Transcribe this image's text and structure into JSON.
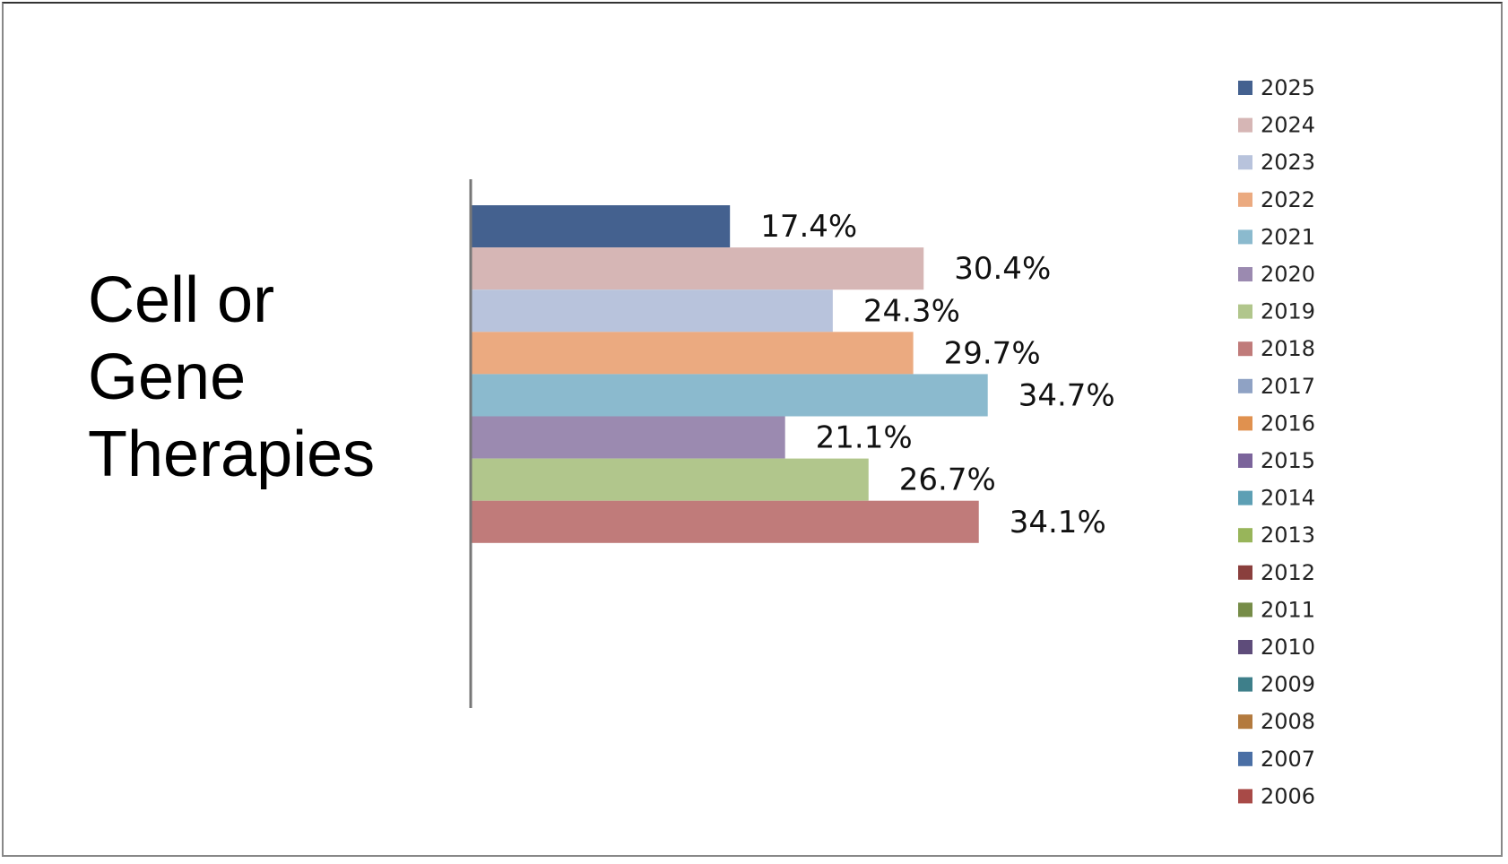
{
  "chart_data": {
    "type": "bar",
    "orientation": "horizontal",
    "title": "Cell or Gene Therapies",
    "categories": [
      null
    ],
    "xlim": [
      0,
      50
    ],
    "series": [
      {
        "name": "2025",
        "color": "#44618f",
        "values": [
          17.4
        ],
        "value_labels": [
          "17.4%"
        ]
      },
      {
        "name": "2024",
        "color": "#d6b6b5",
        "values": [
          30.4
        ],
        "value_labels": [
          "30.4%"
        ]
      },
      {
        "name": "2023",
        "color": "#b8c3dc",
        "values": [
          24.3
        ],
        "value_labels": [
          "24.3%"
        ]
      },
      {
        "name": "2022",
        "color": "#ebaa80",
        "values": [
          29.7
        ],
        "value_labels": [
          "29.7%"
        ]
      },
      {
        "name": "2021",
        "color": "#8bbace",
        "values": [
          34.7
        ],
        "value_labels": [
          "34.7%"
        ]
      },
      {
        "name": "2020",
        "color": "#9b8ab0",
        "values": [
          21.1
        ],
        "value_labels": [
          "21.1%"
        ]
      },
      {
        "name": "2019",
        "color": "#b1c68c",
        "values": [
          26.7
        ],
        "value_labels": [
          "26.7%"
        ]
      },
      {
        "name": "2018",
        "color": "#c07b7a",
        "values": [
          34.1
        ],
        "value_labels": [
          "34.1%"
        ]
      },
      {
        "name": "2017",
        "color": "#8fa2c4",
        "values": [
          null
        ]
      },
      {
        "name": "2016",
        "color": "#e0914f",
        "values": [
          null
        ]
      },
      {
        "name": "2015",
        "color": "#7b649b",
        "values": [
          null
        ]
      },
      {
        "name": "2014",
        "color": "#5d9fb4",
        "values": [
          null
        ]
      },
      {
        "name": "2013",
        "color": "#98b55a",
        "values": [
          null
        ]
      },
      {
        "name": "2012",
        "color": "#8a3f3d",
        "values": [
          null
        ]
      },
      {
        "name": "2011",
        "color": "#768c48",
        "values": [
          null
        ]
      },
      {
        "name": "2010",
        "color": "#5e4c7a",
        "values": [
          null
        ]
      },
      {
        "name": "2009",
        "color": "#3e7f8a",
        "values": [
          null
        ]
      },
      {
        "name": "2008",
        "color": "#b37a3e",
        "values": [
          null
        ]
      },
      {
        "name": "2007",
        "color": "#4a6fa5",
        "values": [
          null
        ]
      },
      {
        "name": "2006",
        "color": "#a84a47",
        "values": [
          null
        ]
      }
    ],
    "legend": "right"
  }
}
